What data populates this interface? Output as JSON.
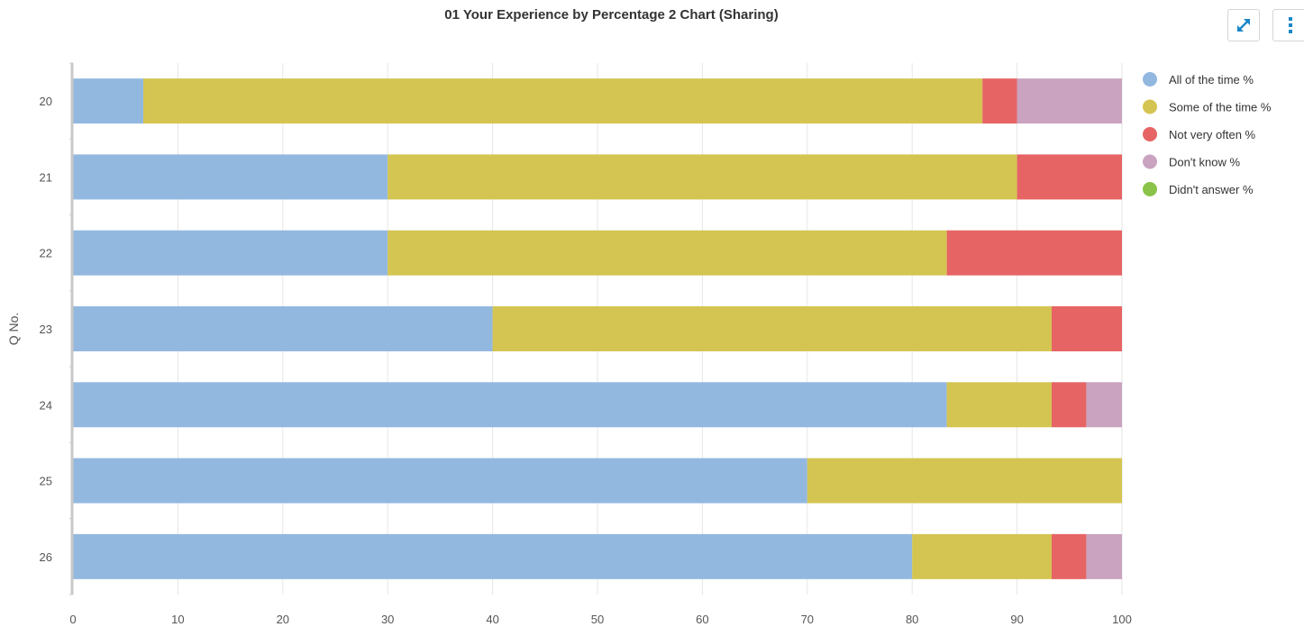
{
  "toolbar": {
    "expand_icon": "expand-arrows-icon",
    "menu_icon": "vertical-dots-icon",
    "icon_color": "#1a86c8"
  },
  "chart_data": {
    "type": "bar",
    "orientation": "horizontal",
    "stacked": true,
    "title": "01 Your Experience by Percentage 2 Chart (Sharing)",
    "xlabel": "",
    "ylabel": "Q No.",
    "xlim": [
      0,
      100
    ],
    "x_ticks": [
      "0",
      "10",
      "20",
      "30",
      "40",
      "50",
      "60",
      "70",
      "80",
      "90",
      "100"
    ],
    "categories": [
      "20",
      "21",
      "22",
      "23",
      "24",
      "25",
      "26"
    ],
    "series": [
      {
        "name": "All of the time %",
        "color": "#93b8e0",
        "values": [
          6.7,
          30,
          30,
          40,
          83.3,
          70,
          80
        ]
      },
      {
        "name": "Some of the time %",
        "color": "#d4c552",
        "values": [
          80,
          60,
          53.3,
          53.3,
          10,
          30,
          13.3
        ]
      },
      {
        "name": "Not very often %",
        "color": "#e66464",
        "values": [
          3.3,
          10,
          16.7,
          6.7,
          3.3,
          0,
          3.3
        ]
      },
      {
        "name": "Don't know %",
        "color": "#c9a3bf",
        "values": [
          10,
          0,
          0,
          0,
          3.4,
          0,
          3.4
        ]
      },
      {
        "name": "Didn't answer %",
        "color": "#8bc34a",
        "values": [
          0,
          0,
          0,
          0,
          0,
          0,
          0
        ]
      }
    ],
    "grid": true,
    "legend_position": "top-right"
  }
}
